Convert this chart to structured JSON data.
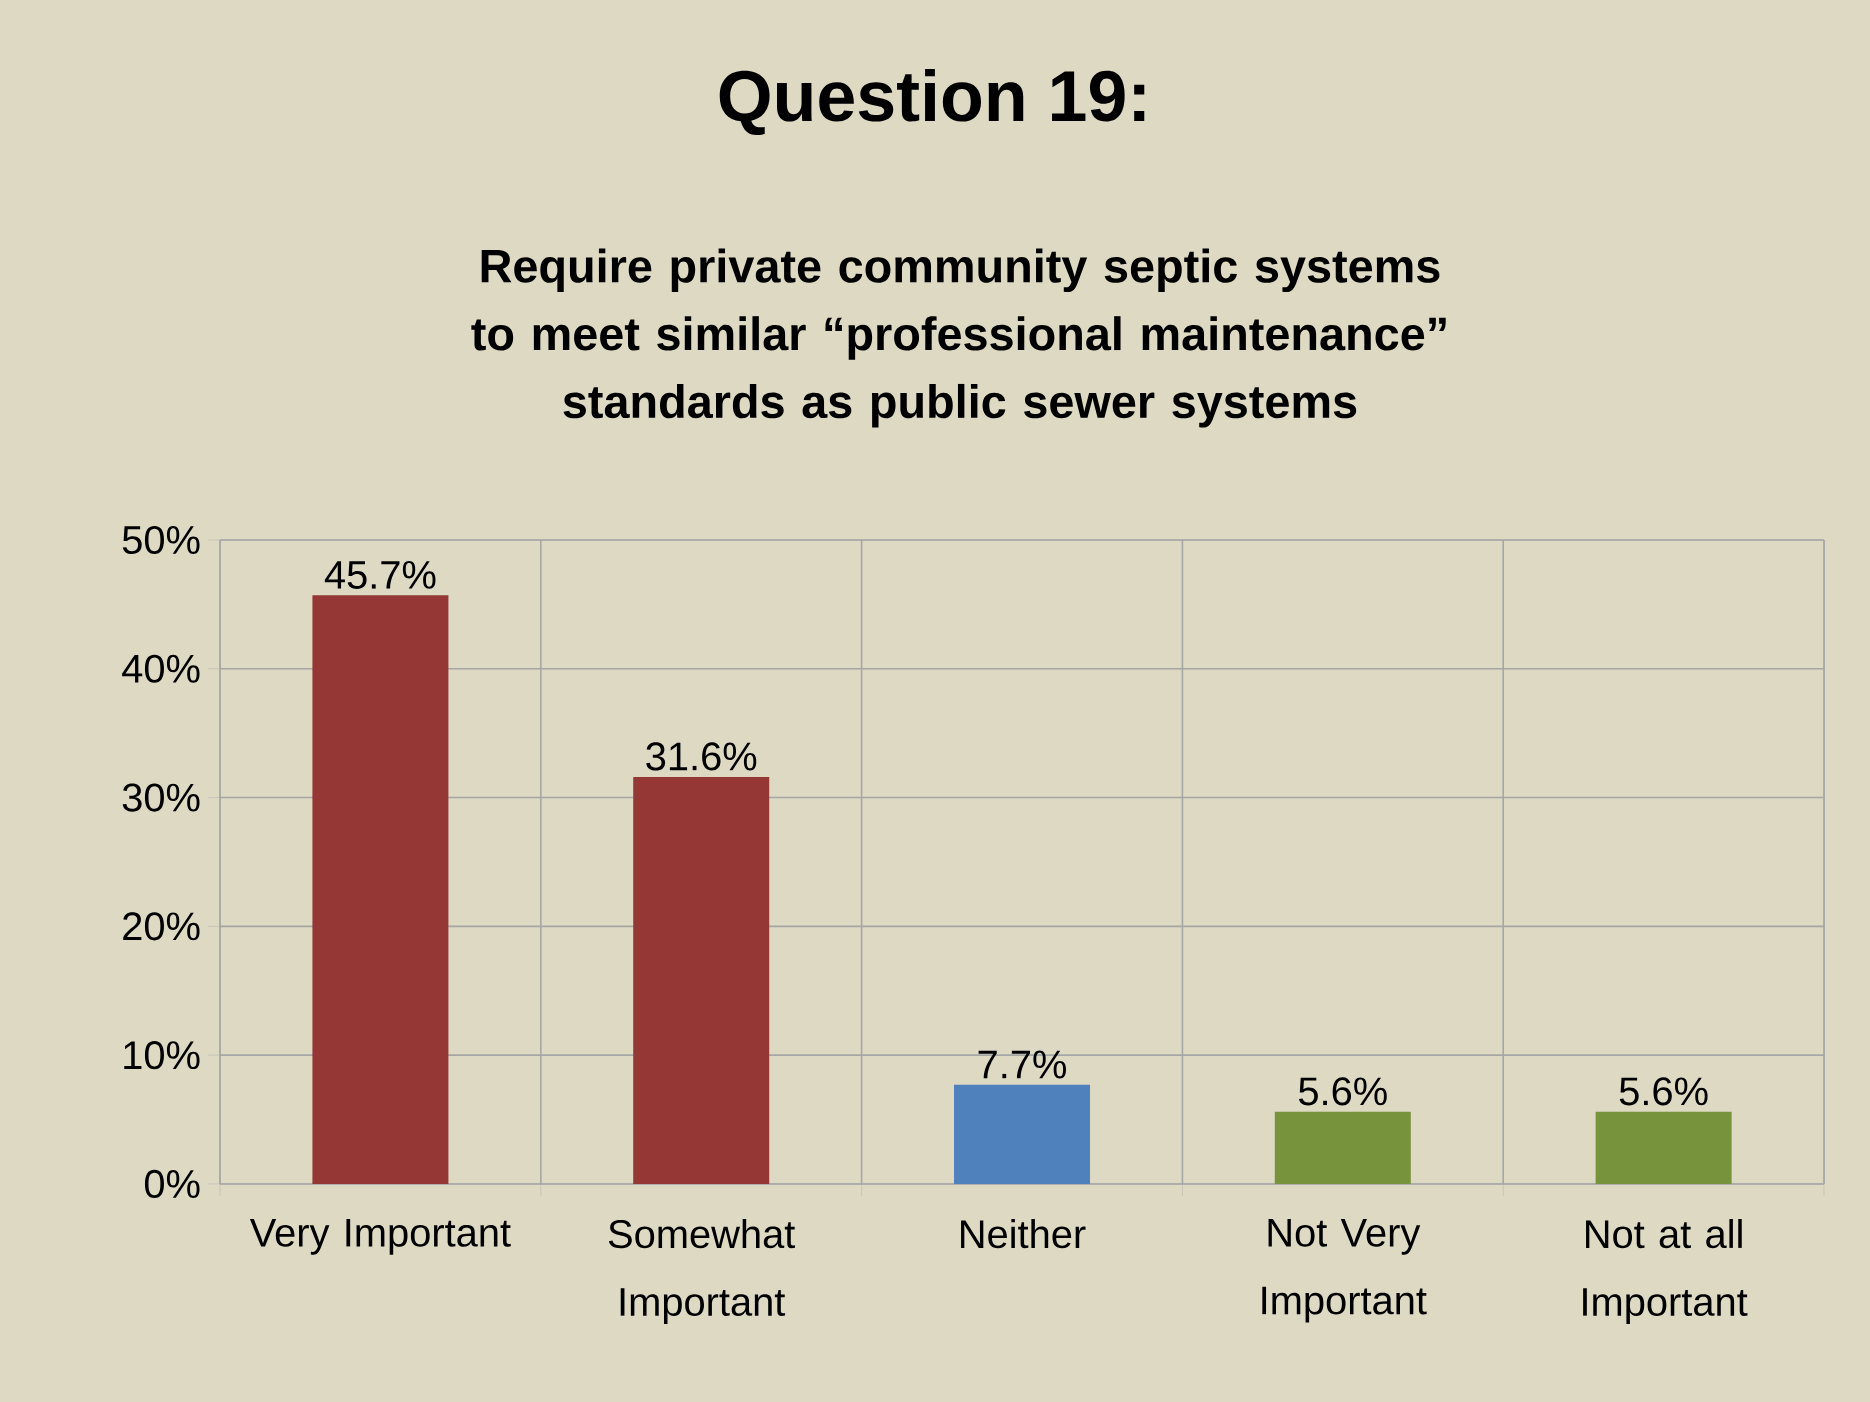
{
  "chart_data": {
    "type": "bar",
    "title": "Question 19:",
    "subtitle": "Require private community septic systems to meet similar “professional maintenance” standards as public sewer systems",
    "categories": [
      "Very Important",
      "Somewhat Important",
      "Neither",
      "Not Very Important",
      "Not at all Important"
    ],
    "values": [
      45.7,
      31.6,
      7.7,
      5.6,
      5.6
    ],
    "colors": [
      "#953735",
      "#953735",
      "#4f81bd",
      "#77933c",
      "#77933c"
    ],
    "value_labels": [
      "45.7%",
      "31.6%",
      "7.7%",
      "5.6%",
      "5.6%"
    ],
    "ylim": [
      0,
      50
    ],
    "yticks": [
      {
        "value": 0,
        "label": "0%"
      },
      {
        "value": 10,
        "label": "10%"
      },
      {
        "value": 20,
        "label": "20%"
      },
      {
        "value": 30,
        "label": "30%"
      },
      {
        "value": 40,
        "label": "40%"
      },
      {
        "value": 50,
        "label": "50%"
      }
    ],
    "grid": true
  }
}
